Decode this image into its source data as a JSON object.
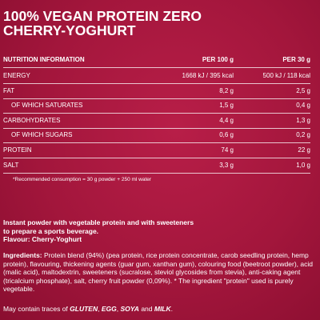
{
  "header": {
    "title_lines": [
      "100% VEGAN PROTEIN ZERO",
      "CHERRY-YOGHURT"
    ]
  },
  "table": {
    "columns": [
      "NUTRITION INFORMATION",
      "PER 100 g",
      "PER 30 g"
    ],
    "rows": [
      [
        "ENERGY",
        "1668 kJ / 395 kcal",
        "500 kJ / 118 kcal"
      ],
      [
        "FAT",
        "8,2 g",
        "2,5 g"
      ],
      [
        "OF WHICH SATURATES",
        "1,5 g",
        "0,4 g"
      ],
      [
        "CARBOHYDRATES",
        "4,4 g",
        "1,3 g"
      ],
      [
        "OF WHICH SUGARS",
        "0,6 g",
        "0,2 g"
      ],
      [
        "PROTEIN",
        "74 g",
        "22 g"
      ],
      [
        "SALT",
        "3,3 g",
        "1,0 g"
      ]
    ],
    "footnote": "*Recommended consumption = 30 g powder + 250 ml water"
  },
  "description": [
    "Instant powder with vegetable protein and with sweeteners",
    "to prepare a sports beverage.",
    "Flavour: Cherry-Yoghurt"
  ],
  "ingredients": {
    "label": "Ingredients:",
    "text": "Protein blend (94%) (pea protein, rice protein concentrate, carob seedling protein, hemp protein), flavouring, thickening agents (guar gum, xanthan gum), colouring food (beetroot powder), acid (malic acid), maltodextrin, sweeteners (sucralose, steviol glycosides from stevia), anti-caking agent (tricalcium phosphate), salt, cherry fruit powder (0,09%). * The ingredient \"protein\" used is purely vegetable."
  },
  "allergens": [
    "May contain traces of ",
    "GLUTEN",
    ", ",
    "EGG",
    ", ",
    "SOYA",
    " and ",
    "MILK",
    "."
  ]
}
